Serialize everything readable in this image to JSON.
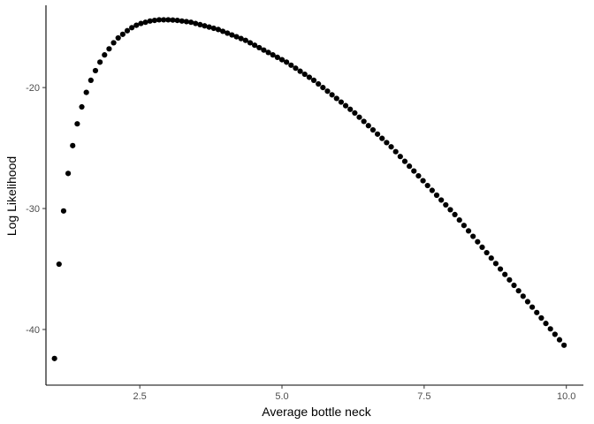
{
  "chart_data": {
    "type": "scatter",
    "xlabel": "Average bottle neck",
    "ylabel": "Log Likelihood",
    "xlim": [
      0.85,
      10.3
    ],
    "ylim": [
      -44.6,
      -13.2
    ],
    "x_ticks": [
      2.5,
      5.0,
      7.5,
      10.0
    ],
    "x_tick_labels": [
      "2.5",
      "5.0",
      "7.5",
      "10.0"
    ],
    "y_ticks": [
      -40,
      -30,
      -20
    ],
    "y_tick_labels": [
      "-40",
      "-30",
      "-20"
    ],
    "grid": false,
    "point_color": "#000000",
    "series": [
      {
        "x": [
          1.0,
          1.08,
          1.16,
          1.24,
          1.32,
          1.4,
          1.48,
          1.56,
          1.64,
          1.72,
          1.8,
          1.88,
          1.96,
          2.04,
          2.12,
          2.2,
          2.28,
          2.36,
          2.44,
          2.52,
          2.6,
          2.68,
          2.76,
          2.84,
          2.92,
          3.0,
          3.08,
          3.16,
          3.24,
          3.32,
          3.4,
          3.48,
          3.56,
          3.64,
          3.72,
          3.8,
          3.88,
          3.96,
          4.04,
          4.12,
          4.2,
          4.28,
          4.36,
          4.44,
          4.52,
          4.6,
          4.68,
          4.76,
          4.84,
          4.92,
          5.0,
          5.08,
          5.16,
          5.24,
          5.32,
          5.4,
          5.48,
          5.56,
          5.64,
          5.72,
          5.8,
          5.88,
          5.96,
          6.04,
          6.12,
          6.2,
          6.28,
          6.36,
          6.44,
          6.52,
          6.6,
          6.68,
          6.76,
          6.84,
          6.92,
          7.0,
          7.08,
          7.16,
          7.24,
          7.32,
          7.4,
          7.48,
          7.56,
          7.64,
          7.72,
          7.8,
          7.88,
          7.96,
          8.04,
          8.12,
          8.2,
          8.28,
          8.36,
          8.44,
          8.52,
          8.6,
          8.68,
          8.76,
          8.84,
          8.92,
          9.0,
          9.08,
          9.16,
          9.24,
          9.32,
          9.4,
          9.48,
          9.56,
          9.64,
          9.72,
          9.8,
          9.88,
          9.96
        ],
        "y": [
          -42.4,
          -34.6,
          -30.2,
          -27.1,
          -24.8,
          -23.0,
          -21.6,
          -20.4,
          -19.4,
          -18.6,
          -17.9,
          -17.3,
          -16.8,
          -16.3,
          -15.9,
          -15.6,
          -15.3,
          -15.05,
          -14.85,
          -14.7,
          -14.6,
          -14.5,
          -14.45,
          -14.4,
          -14.4,
          -14.4,
          -14.42,
          -14.45,
          -14.5,
          -14.55,
          -14.6,
          -14.7,
          -14.8,
          -14.9,
          -15.0,
          -15.1,
          -15.2,
          -15.35,
          -15.5,
          -15.65,
          -15.8,
          -15.95,
          -16.1,
          -16.3,
          -16.5,
          -16.7,
          -16.9,
          -17.1,
          -17.3,
          -17.5,
          -17.7,
          -17.9,
          -18.15,
          -18.4,
          -18.65,
          -18.9,
          -19.15,
          -19.4,
          -19.7,
          -20.0,
          -20.3,
          -20.6,
          -20.9,
          -21.2,
          -21.5,
          -21.8,
          -22.1,
          -22.45,
          -22.8,
          -23.15,
          -23.5,
          -23.85,
          -24.2,
          -24.55,
          -24.9,
          -25.3,
          -25.7,
          -26.1,
          -26.5,
          -26.9,
          -27.3,
          -27.7,
          -28.1,
          -28.5,
          -28.9,
          -29.3,
          -29.7,
          -30.1,
          -30.5,
          -30.95,
          -31.4,
          -31.85,
          -32.3,
          -32.75,
          -33.2,
          -33.65,
          -34.1,
          -34.55,
          -35.0,
          -35.45,
          -35.9,
          -36.35,
          -36.8,
          -37.25,
          -37.7,
          -38.15,
          -38.6,
          -39.05,
          -39.5,
          -39.95,
          -40.4,
          -40.85,
          -41.3
        ]
      }
    ]
  }
}
